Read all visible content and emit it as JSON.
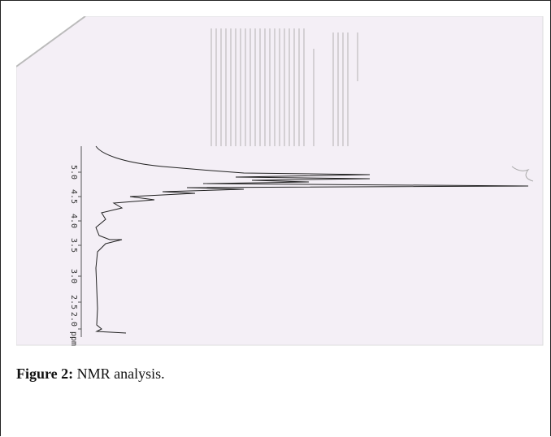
{
  "figure": {
    "axis_labels": [
      "5.0",
      "4.5",
      "4.0",
      "3.5",
      "3.0",
      "2.5",
      "2.0 ppm"
    ],
    "caption_label": "Figure 2:",
    "caption_text": "NMR analysis."
  }
}
